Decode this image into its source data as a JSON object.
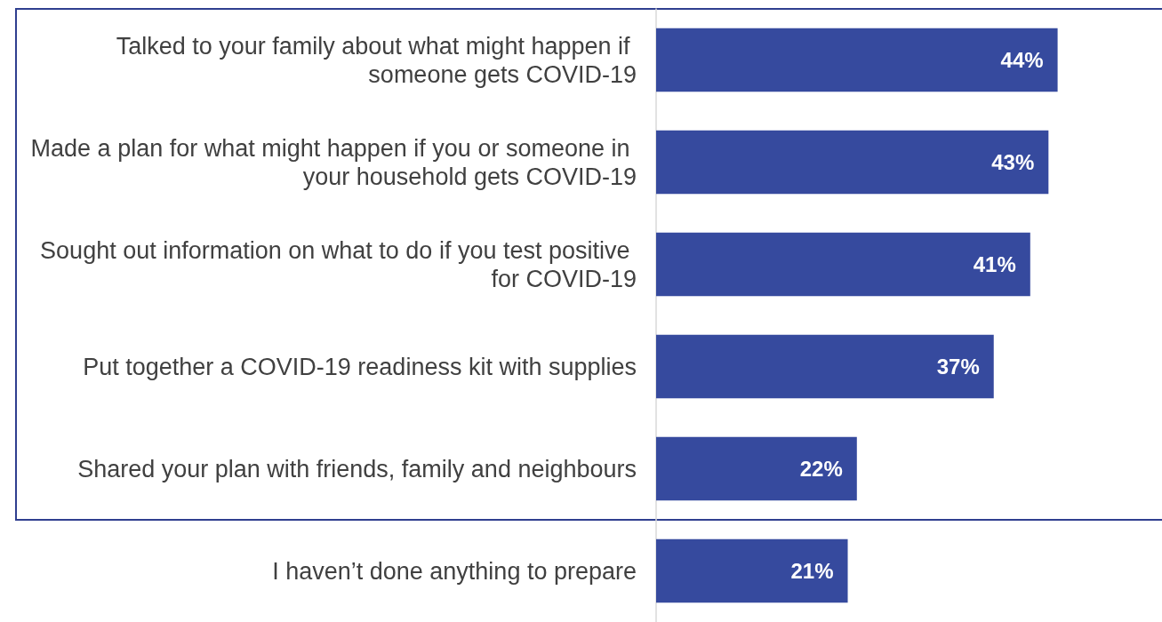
{
  "chart_data": {
    "type": "bar",
    "orientation": "horizontal",
    "categories": [
      "Talked to your family about what might happen if someone gets COVID-19",
      "Made a plan for what might happen if you or someone in your household gets COVID-19",
      "Sought out information on what to do if you test positive for COVID-19",
      "Put together a COVID-19 readiness kit with supplies",
      "Shared your plan with friends, family and neighbours",
      "I haven’t done anything to prepare"
    ],
    "values": [
      44,
      43,
      41,
      37,
      22,
      21
    ],
    "value_labels": [
      "44%",
      "43%",
      "41%",
      "37%",
      "22%",
      "21%"
    ],
    "color": "#364a9e"
  }
}
